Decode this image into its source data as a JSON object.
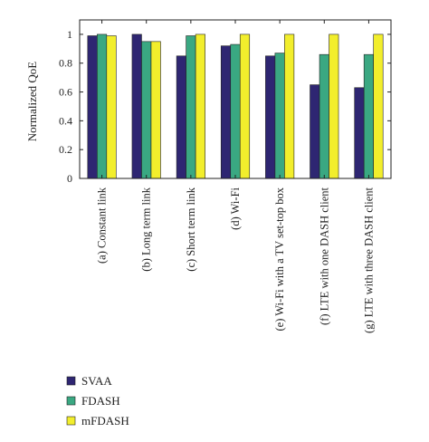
{
  "chart_data": {
    "type": "bar",
    "title": "",
    "xlabel": "",
    "ylabel": "Normalized QoE",
    "ylim": [
      0,
      1.1
    ],
    "yticks": [
      0,
      0.2,
      0.4,
      0.6,
      0.8,
      1
    ],
    "ytick_labels": [
      "0",
      "0.2",
      "0.4",
      "0.6",
      "0.8",
      "1"
    ],
    "grid": false,
    "legend_position": "bottom-left",
    "categories": [
      "(a) Constant link",
      "(b) Long term link",
      "(c) Short term link",
      "(d) Wi-Fi",
      "(e) Wi-Fi with a TV set-top box",
      "(f) LTE with one DASH client",
      "(g) LTE with three DASH client"
    ],
    "series": [
      {
        "name": "SVAA",
        "color": "#2e2672",
        "values": [
          0.99,
          1.0,
          0.85,
          0.92,
          0.85,
          0.65,
          0.63
        ]
      },
      {
        "name": "FDASH",
        "color": "#3aa882",
        "values": [
          1.0,
          0.95,
          0.99,
          0.93,
          0.87,
          0.86,
          0.86
        ]
      },
      {
        "name": "mFDASH",
        "color": "#f2ee2c",
        "values": [
          0.99,
          0.95,
          1.0,
          1.0,
          1.0,
          1.0,
          1.0
        ]
      }
    ]
  }
}
